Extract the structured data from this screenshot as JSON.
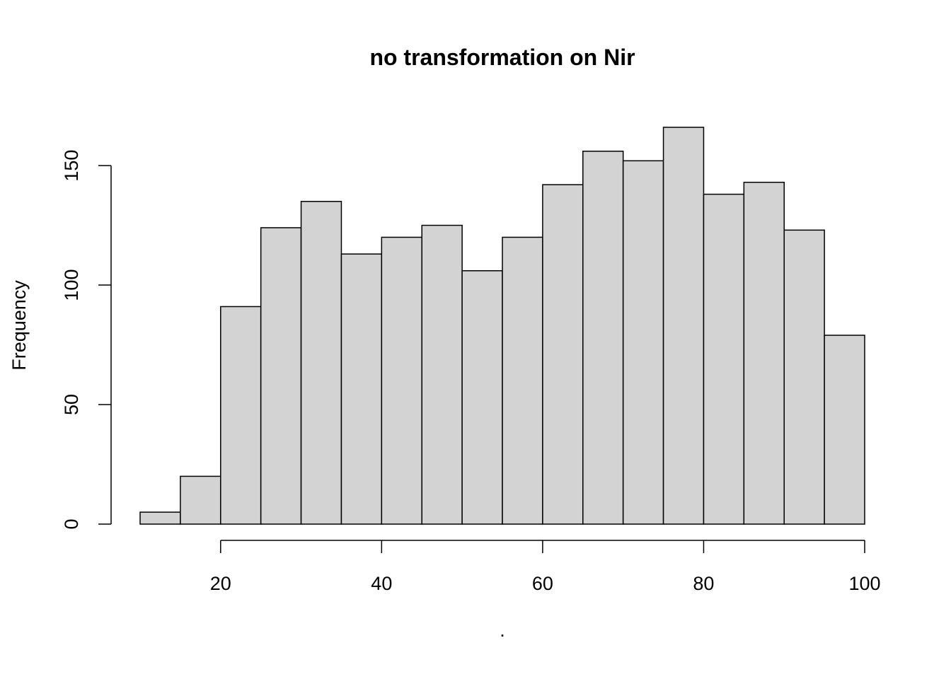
{
  "chart_data": {
    "type": "histogram",
    "title": "no transformation on Nir",
    "xlabel": ".",
    "ylabel": "Frequency",
    "bins": [
      10,
      15,
      20,
      25,
      30,
      35,
      40,
      45,
      50,
      55,
      60,
      65,
      70,
      75,
      80,
      85,
      90,
      95,
      100
    ],
    "counts": [
      5,
      20,
      91,
      124,
      135,
      113,
      120,
      125,
      106,
      120,
      142,
      156,
      152,
      166,
      138,
      143,
      123,
      79
    ],
    "color": "#d3d3d3",
    "xlim": [
      10,
      100
    ],
    "xticks": [
      20,
      40,
      60,
      80,
      100
    ],
    "ylim": [
      0,
      166
    ],
    "yticks": [
      0,
      50,
      100,
      150
    ]
  }
}
